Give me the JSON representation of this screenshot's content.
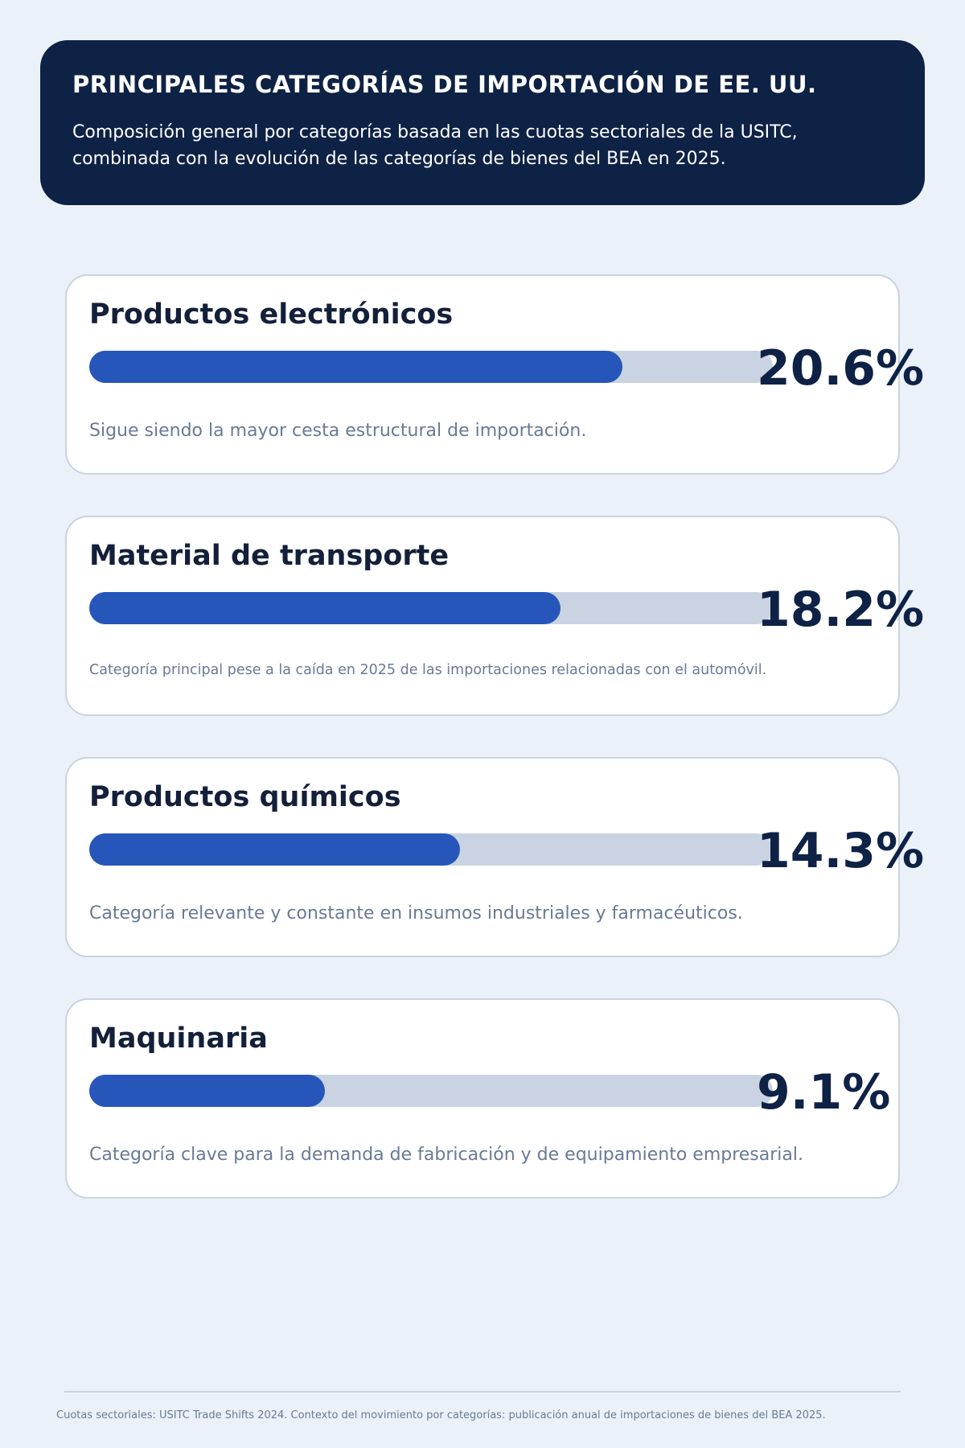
{
  "header": {
    "title": "PRINCIPALES CATEGORÍAS DE IMPORTACIÓN DE EE. UU.",
    "subtitle_line1": "Composición general por categorías basada en las cuotas sectoriales de la USITC,",
    "subtitle_line2": "combinada con la evolución de las categorías de bienes del BEA en 2025."
  },
  "colors": {
    "header_bg": "#0e2246",
    "bar_fill": "#2756bb",
    "bar_track": "#c9d3e1",
    "background": "#eaf1f9"
  },
  "categories": [
    {
      "name": "Productos electrónicos",
      "value": 20.6,
      "label": "20.6%",
      "description": "Sigue siendo la mayor cesta estructural de importación."
    },
    {
      "name": "Material de transporte",
      "value": 18.2,
      "label": "18.2%",
      "description": "Categoría principal pese a la caída en 2025 de las importaciones relacionadas con el automóvil."
    },
    {
      "name": "Productos químicos",
      "value": 14.3,
      "label": "14.3%",
      "description": "Categoría relevante y constante en insumos industriales y farmacéuticos."
    },
    {
      "name": "Maquinaria",
      "value": 9.1,
      "label": "9.1%",
      "description": "Categoría clave para la demanda de fabricación y de equipamiento empresarial."
    }
  ],
  "footer": {
    "source": "Cuotas sectoriales: USITC Trade Shifts 2024. Contexto del movimiento por categorías: publicación anual de importaciones de bienes del BEA 2025."
  }
}
